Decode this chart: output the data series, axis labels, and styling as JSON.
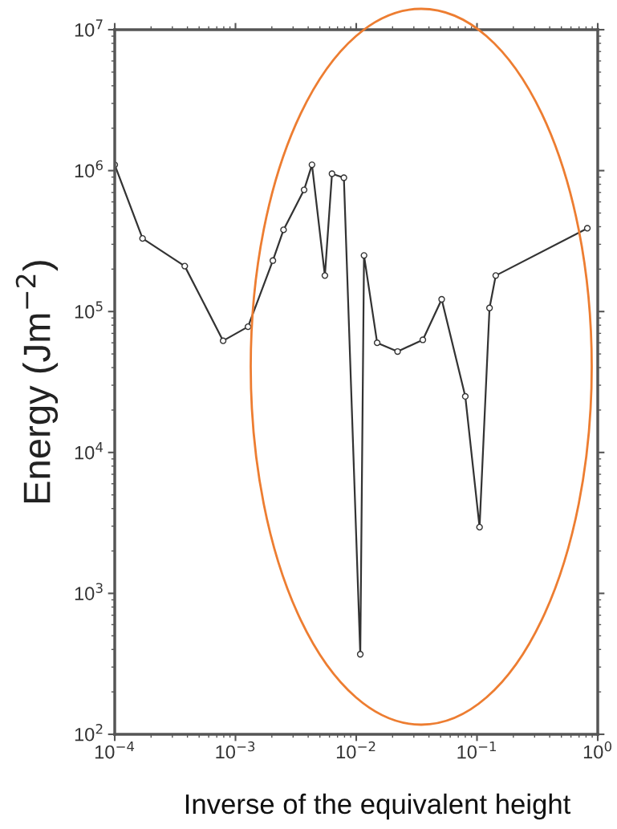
{
  "chart_data": {
    "type": "line",
    "xlabel": "Inverse of the equivalent height",
    "ylabel": "Energy (Jm$^{−2}$)",
    "log": "xy",
    "grid": false,
    "marker": "circle",
    "line_style": "solid",
    "x": [
      0.0001,
      0.00017,
      0.00038,
      0.00079,
      0.00127,
      0.00204,
      0.0025,
      0.0037,
      0.0043,
      0.0055,
      0.0063,
      0.0079,
      0.0108,
      0.0116,
      0.0149,
      0.022,
      0.0356,
      0.051,
      0.08,
      0.105,
      0.127,
      0.143,
      0.82
    ],
    "series": [
      {
        "color": "#333333",
        "values": [
          1100000,
          330000,
          210000,
          62000,
          78000,
          230000,
          380000,
          730000,
          1100000,
          180000,
          950000,
          890000,
          370,
          250000,
          60000,
          52000,
          63000,
          122000,
          25000,
          2950,
          106000,
          180000,
          390000
        ]
      }
    ],
    "xlim": [
      0.0001,
      1
    ],
    "ylim": [
      100,
      10000000
    ],
    "xticks": [
      {
        "value": 0.0001,
        "label": "10$^{−4}$"
      },
      {
        "value": 0.001,
        "label": "10$^{−3}$"
      },
      {
        "value": 0.01,
        "label": "10$^{−2}$"
      },
      {
        "value": 0.1,
        "label": "10$^{−1}$"
      },
      {
        "value": 1,
        "label": "10$^{0}$"
      }
    ],
    "yticks": [
      {
        "value": 100,
        "label": "10$^{2}$"
      },
      {
        "value": 1000,
        "label": "10$^{3}$"
      },
      {
        "value": 10000,
        "label": "10$^{4}$"
      },
      {
        "value": 100000,
        "label": "10$^{5}$"
      },
      {
        "value": 1000000,
        "label": "10$^{6}$"
      },
      {
        "value": 10000000,
        "label": "10$^{7}$"
      }
    ]
  }
}
